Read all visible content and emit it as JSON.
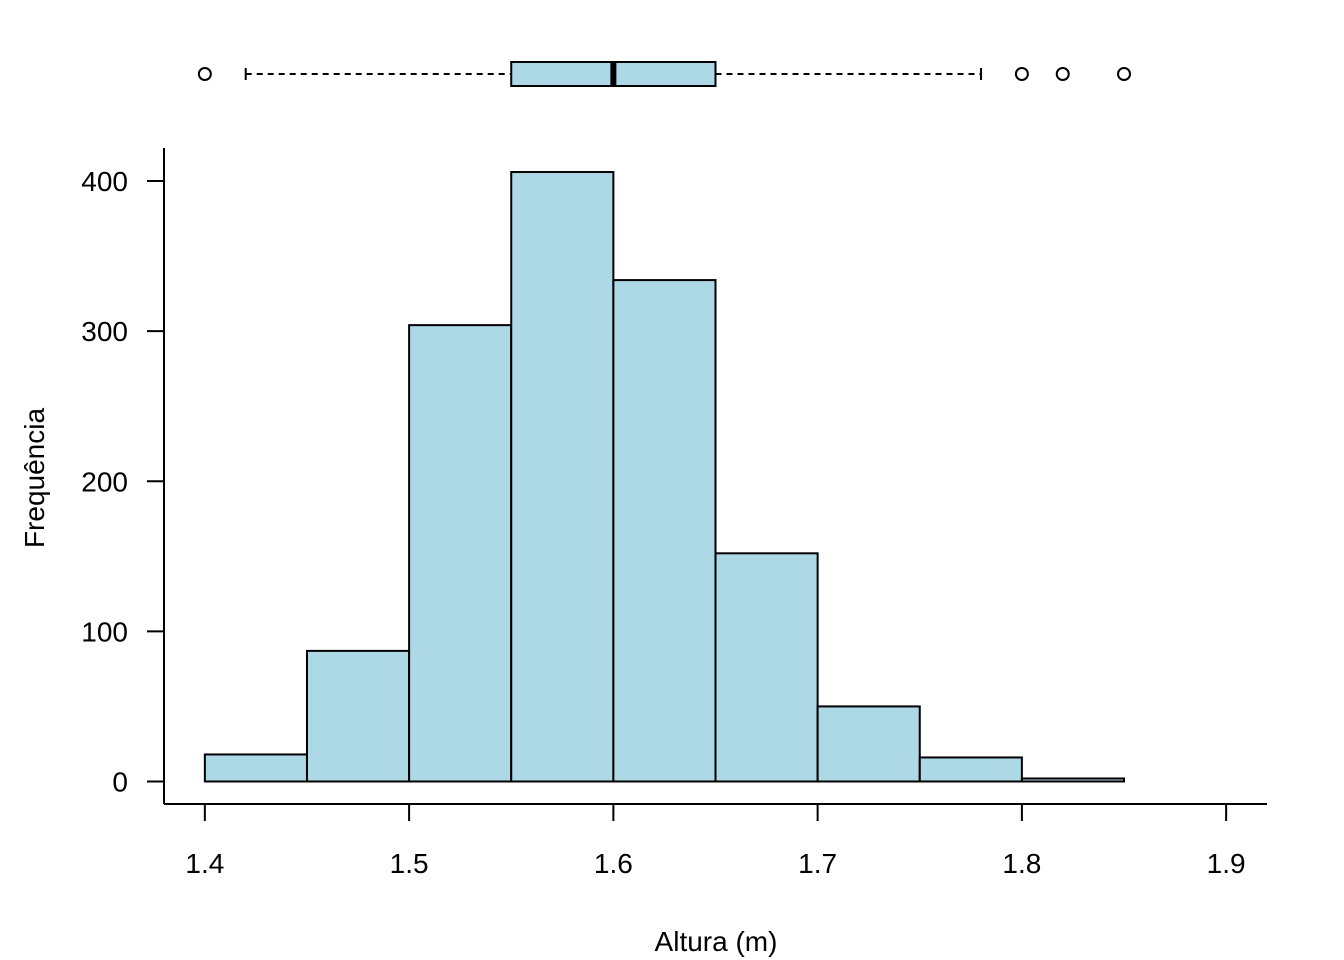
{
  "chart_data": {
    "type": "bar",
    "subtype": "histogram-with-boxplot",
    "title": "",
    "xlabel": "Altura (m)",
    "ylabel": "Frequência",
    "bin_edges": [
      1.4,
      1.45,
      1.5,
      1.55,
      1.6,
      1.65,
      1.7,
      1.75,
      1.8,
      1.85
    ],
    "values": [
      18,
      87,
      304,
      406,
      334,
      152,
      50,
      16,
      2
    ],
    "xlim": [
      1.38,
      1.92
    ],
    "ylim": [
      -15,
      422
    ],
    "x_ticks": [
      1.4,
      1.5,
      1.6,
      1.7,
      1.8,
      1.9
    ],
    "x_tick_labels": [
      "1.4",
      "1.5",
      "1.6",
      "1.7",
      "1.8",
      "1.9"
    ],
    "y_ticks": [
      0,
      100,
      200,
      300,
      400
    ],
    "y_tick_labels": [
      "0",
      "100",
      "200",
      "300",
      "400"
    ],
    "grid": false,
    "bar_color": "#add8e6",
    "boxplot": {
      "whisker_low": 1.42,
      "q1": 1.55,
      "median": 1.6,
      "q3": 1.65,
      "whisker_high": 1.78,
      "outliers": [
        1.4,
        1.8,
        1.82,
        1.85
      ],
      "color": "#add8e6"
    }
  }
}
